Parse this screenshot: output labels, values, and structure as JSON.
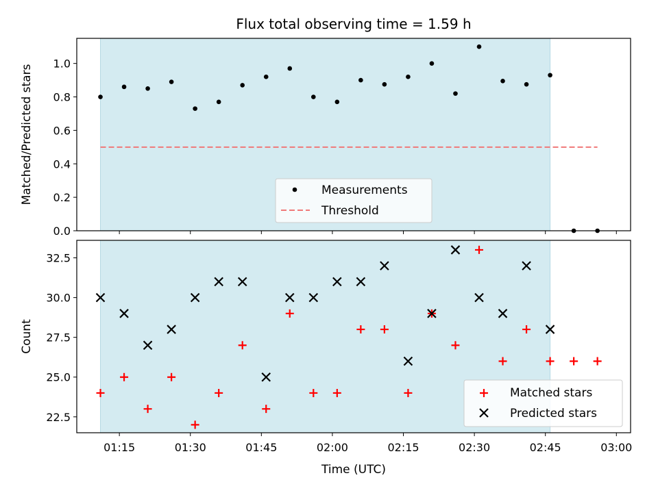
{
  "chart_data": [
    {
      "type": "scatter",
      "title": "Flux total observing time = 1.59 h",
      "xlabel": "",
      "ylabel": "Matched/Predicted stars",
      "ylim": [
        0,
        1.15
      ],
      "yticks": [
        0.0,
        0.2,
        0.4,
        0.6,
        0.8,
        1.0
      ],
      "ytick_labels": [
        "0.0",
        "0.2",
        "0.4",
        "0.6",
        "0.8",
        "1.0"
      ],
      "xlim": [
        "01:06",
        "03:03"
      ],
      "xticks": [
        "01:15",
        "01:30",
        "01:45",
        "02:00",
        "02:15",
        "02:30",
        "02:45",
        "03:00"
      ],
      "xtick_labels_shown": false,
      "shaded_region": {
        "from": "01:11",
        "to": "02:46",
        "color": "#d4ebf1"
      },
      "series": [
        {
          "name": "Measurements",
          "marker": "dot",
          "color": "#000000",
          "x": [
            "01:11",
            "01:16",
            "01:21",
            "01:26",
            "01:31",
            "01:36",
            "01:41",
            "01:46",
            "01:51",
            "01:56",
            "02:01",
            "02:06",
            "02:11",
            "02:16",
            "02:21",
            "02:26",
            "02:31",
            "02:36",
            "02:41",
            "02:46",
            "02:51",
            "02:56"
          ],
          "y": [
            0.8,
            0.86,
            0.85,
            0.89,
            0.73,
            0.77,
            0.87,
            0.92,
            0.97,
            0.8,
            0.77,
            0.9,
            0.875,
            0.92,
            1.0,
            0.82,
            1.1,
            0.895,
            0.875,
            0.93,
            0.0,
            0.0
          ]
        },
        {
          "name": "Threshold",
          "style": "dashed",
          "color": "#f07878",
          "x": [
            "01:11",
            "02:56"
          ],
          "y": [
            0.5,
            0.5
          ]
        }
      ],
      "legend": {
        "entries": [
          "Measurements",
          "Threshold"
        ],
        "placement": "lower-center"
      }
    },
    {
      "type": "scatter",
      "title": "",
      "xlabel": "Time (UTC)",
      "ylabel": "Count",
      "ylim": [
        21.5,
        33.6
      ],
      "yticks": [
        22.5,
        25.0,
        27.5,
        30.0,
        32.5
      ],
      "ytick_labels": [
        "22.5",
        "25.0",
        "27.5",
        "30.0",
        "32.5"
      ],
      "xlim": [
        "01:06",
        "03:03"
      ],
      "xticks": [
        "01:15",
        "01:30",
        "01:45",
        "02:00",
        "02:15",
        "02:30",
        "02:45",
        "03:00"
      ],
      "xtick_labels": [
        "01:15",
        "01:30",
        "01:45",
        "02:00",
        "02:15",
        "02:30",
        "02:45",
        "03:00"
      ],
      "shaded_region": {
        "from": "01:11",
        "to": "02:46",
        "color": "#d4ebf1"
      },
      "series": [
        {
          "name": "Matched stars",
          "marker": "plus",
          "color": "#ff0000",
          "x": [
            "01:11",
            "01:16",
            "01:21",
            "01:26",
            "01:31",
            "01:36",
            "01:41",
            "01:46",
            "01:51",
            "01:56",
            "02:01",
            "02:06",
            "02:11",
            "02:16",
            "02:21",
            "02:26",
            "02:31",
            "02:36",
            "02:41",
            "02:46",
            "02:51",
            "02:56"
          ],
          "y": [
            24,
            25,
            23,
            25,
            22,
            24,
            27,
            23,
            29,
            24,
            24,
            28,
            28,
            24,
            29,
            27,
            33,
            26,
            28,
            26,
            26,
            26
          ]
        },
        {
          "name": "Predicted stars",
          "marker": "x",
          "color": "#000000",
          "x": [
            "01:11",
            "01:16",
            "01:21",
            "01:26",
            "01:31",
            "01:36",
            "01:41",
            "01:46",
            "01:51",
            "01:56",
            "02:01",
            "02:06",
            "02:11",
            "02:16",
            "02:21",
            "02:26",
            "02:31",
            "02:36",
            "02:41",
            "02:46"
          ],
          "y": [
            30,
            29,
            27,
            28,
            30,
            31,
            31,
            25,
            30,
            30,
            31,
            31,
            32,
            26,
            29,
            33,
            30,
            29,
            32,
            28
          ]
        }
      ],
      "legend": {
        "entries": [
          "Matched stars",
          "Predicted stars"
        ],
        "placement": "lower-right"
      }
    }
  ]
}
